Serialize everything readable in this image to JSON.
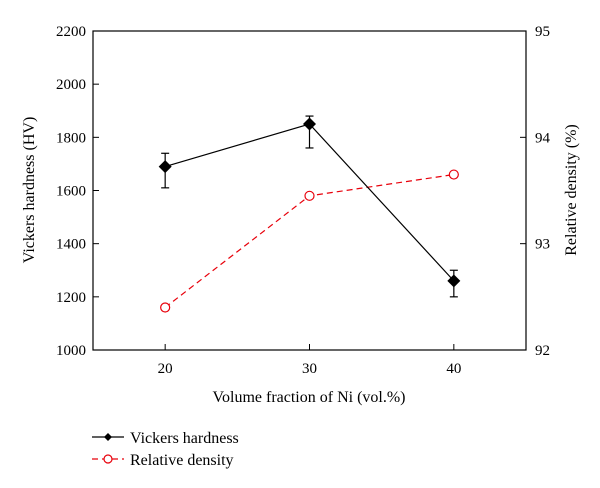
{
  "chart_data": {
    "type": "line",
    "x": [
      20,
      30,
      40
    ],
    "xlabel": "Volume fraction of Ni (vol.%)",
    "xticks": [
      "20",
      "30",
      "40"
    ],
    "xlim": [
      15,
      45
    ],
    "ylabel": "Vickers hardness (HV)",
    "ylim": [
      1000,
      2200
    ],
    "yticks": [
      "1000",
      "1200",
      "1400",
      "1600",
      "1800",
      "2000",
      "2200"
    ],
    "y2label": "Relative density (%)",
    "y2lim": [
      92,
      95
    ],
    "y2ticks": [
      "92",
      "93",
      "94",
      "95"
    ],
    "grid": false,
    "legend_position": "bottom-left, below plot",
    "series": [
      {
        "name": "Vickers hardness",
        "axis": "left",
        "values": [
          1690,
          1850,
          1260
        ],
        "error": [
          [
            80,
            50
          ],
          [
            90,
            30
          ],
          [
            60,
            40
          ]
        ],
        "color": "#000000",
        "marker": "filled-diamond",
        "line_style": "solid"
      },
      {
        "name": "Relative density",
        "axis": "right",
        "values": [
          92.4,
          93.45,
          93.65
        ],
        "color": "#e8000b",
        "marker": "open-circle",
        "line_style": "dashed"
      }
    ]
  }
}
